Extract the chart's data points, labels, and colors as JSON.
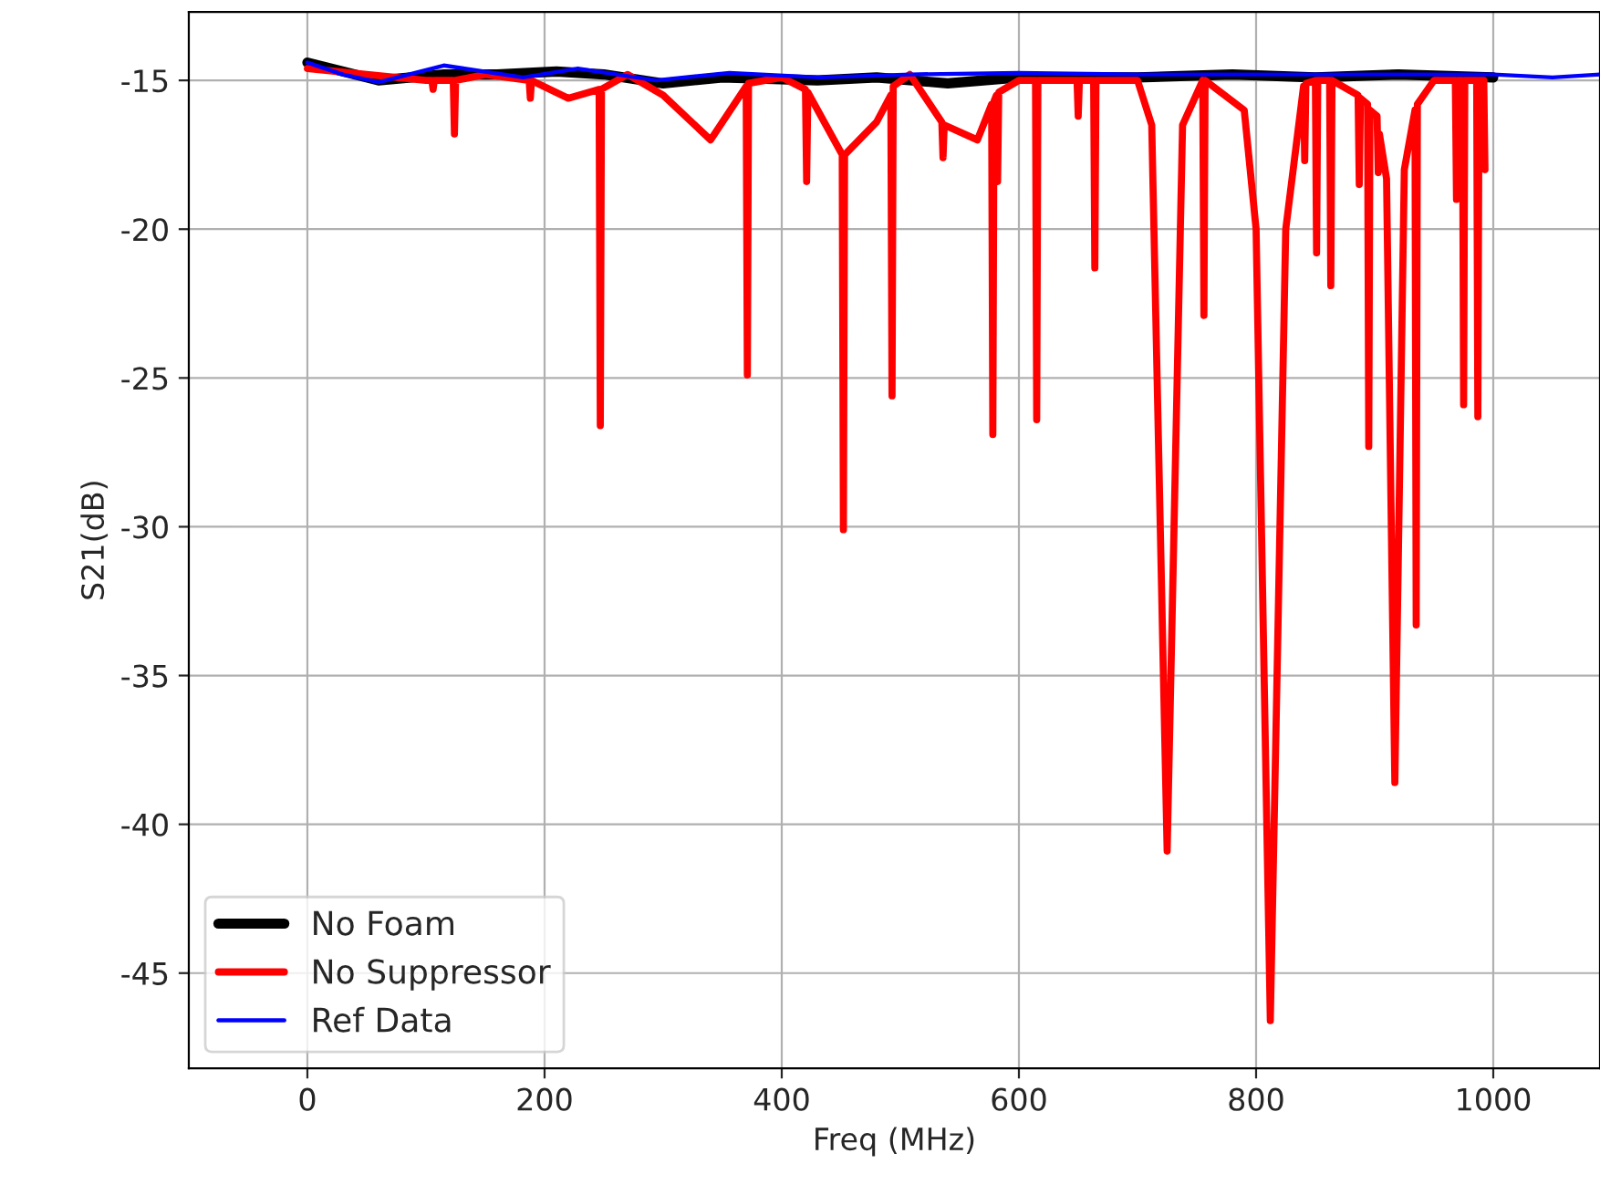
{
  "chart_data": {
    "type": "line",
    "xlabel": "Freq (MHz)",
    "ylabel": "S21(dB)",
    "xlim": [
      -100,
      1090
    ],
    "ylim": [
      -48.2,
      -12.7
    ],
    "xticks": [
      0,
      200,
      400,
      600,
      800,
      1000
    ],
    "yticks": [
      -45,
      -40,
      -35,
      -30,
      -25,
      -20,
      -15
    ],
    "grid": true,
    "legend": "bottom left",
    "line_style": "solid",
    "series": [
      {
        "name": "No Foam",
        "color": "#000000",
        "x": [
          0,
          30,
          60,
          115,
          160,
          210,
          250,
          300,
          350,
          430,
          480,
          540,
          600,
          700,
          780,
          850,
          920,
          1000
        ],
        "values": [
          -14.4,
          -14.7,
          -15.0,
          -14.8,
          -14.8,
          -14.7,
          -14.8,
          -15.1,
          -14.9,
          -15.0,
          -14.9,
          -15.1,
          -14.9,
          -14.9,
          -14.8,
          -14.9,
          -14.8,
          -14.9
        ]
      },
      {
        "name": "No Suppressor",
        "color": "#ff0000",
        "x": [
          0,
          50,
          100,
          105,
          106,
          107,
          123,
          124,
          125,
          150,
          187,
          188,
          189,
          220,
          246,
          247,
          248,
          270,
          300,
          340,
          370,
          371,
          372,
          400,
          420,
          421,
          422,
          451,
          452,
          453,
          480,
          492,
          493,
          494,
          508,
          535,
          536,
          537,
          565,
          577,
          578,
          579,
          581,
          582,
          583,
          600,
          614,
          615,
          616,
          649,
          650,
          651,
          663,
          664,
          665,
          700,
          712,
          725,
          738,
          755,
          756,
          757,
          790,
          800,
          812,
          825,
          840,
          841,
          842,
          850,
          851,
          852,
          862,
          863,
          864,
          886,
          887,
          888,
          894,
          895,
          896,
          902,
          903,
          904,
          910,
          917,
          925,
          934,
          935,
          936,
          950,
          968,
          969,
          970,
          974,
          975,
          976,
          986,
          987,
          988,
          992,
          993
        ],
        "values": [
          -14.6,
          -14.8,
          -15.0,
          -15.0,
          -15.3,
          -15.0,
          -15.0,
          -16.8,
          -15.0,
          -14.8,
          -15.0,
          -15.6,
          -15.0,
          -15.6,
          -15.3,
          -26.6,
          -15.3,
          -14.8,
          -15.5,
          -17.0,
          -15.2,
          -24.9,
          -15.1,
          -14.9,
          -15.3,
          -18.4,
          -15.4,
          -17.5,
          -30.1,
          -17.5,
          -16.4,
          -15.5,
          -25.6,
          -15.2,
          -14.8,
          -16.4,
          -17.6,
          -16.5,
          -17.0,
          -15.8,
          -26.9,
          -15.7,
          -15.5,
          -18.4,
          -15.4,
          -15.0,
          -15.0,
          -26.4,
          -15.0,
          -15.0,
          -16.2,
          -15.0,
          -15.0,
          -21.3,
          -15.0,
          -15.0,
          -16.5,
          -40.9,
          -16.5,
          -15.0,
          -22.9,
          -15.0,
          -16.0,
          -20.0,
          -46.6,
          -20.0,
          -15.2,
          -17.7,
          -15.1,
          -15.0,
          -20.8,
          -15.0,
          -15.0,
          -21.9,
          -15.0,
          -15.5,
          -18.5,
          -15.6,
          -15.8,
          -27.3,
          -16.0,
          -16.2,
          -18.1,
          -16.8,
          -18.3,
          -38.6,
          -18.0,
          -16.0,
          -33.3,
          -15.8,
          -15.0,
          -15.0,
          -19.0,
          -15.0,
          -15.0,
          -25.9,
          -15.0,
          -15.0,
          -26.3,
          -15.0,
          -15.0,
          -18.0
        ]
      },
      {
        "name": "Ref Data",
        "color": "#0000ff",
        "x": [
          0,
          30,
          60,
          115,
          182,
          228,
          294,
          356,
          432,
          509,
          600,
          700,
          800,
          900,
          1000,
          1050,
          1090
        ],
        "values": [
          -14.4,
          -14.8,
          -15.06,
          -14.5,
          -14.9,
          -14.6,
          -15.0,
          -14.75,
          -14.9,
          -14.8,
          -14.75,
          -14.8,
          -14.8,
          -14.8,
          -14.8,
          -14.9,
          -14.8
        ]
      }
    ]
  }
}
